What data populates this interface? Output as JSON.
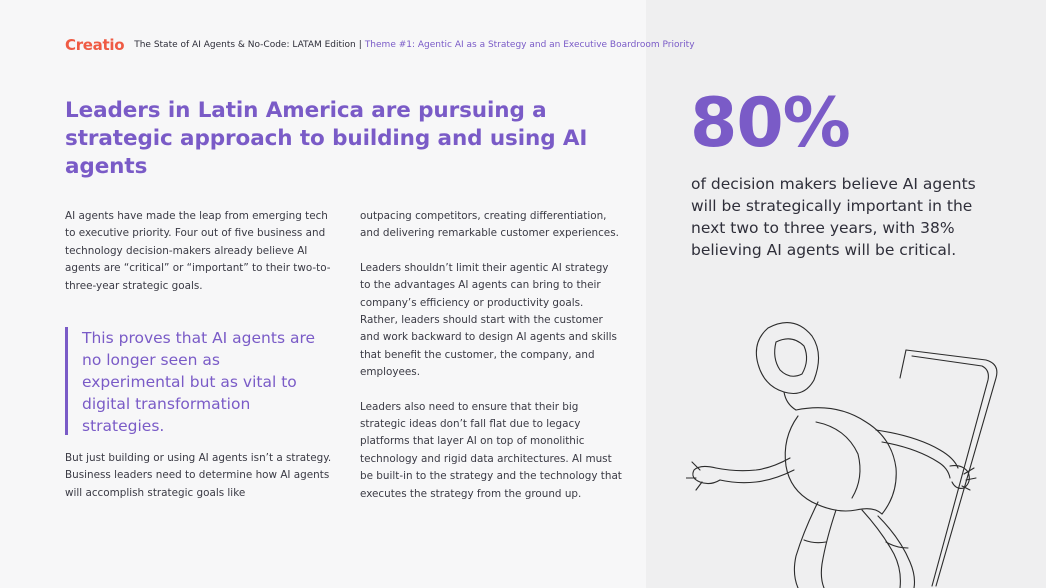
{
  "brand": {
    "logo_text": "Creatio",
    "logo_color": "#ef5b44",
    "accent_color": "#7a5bc7"
  },
  "header": {
    "title": "The State of AI Agents & No-Code: LATAM Edition",
    "separator": "|",
    "theme": "Theme #1: Agentic AI as a Strategy and an Executive Boardroom Priority"
  },
  "headline": "Leaders in Latin America are pursuing a strategic approach to building and using AI agents",
  "column1": {
    "paragraph_1": "AI agents have made the leap from emerging tech to executive priority. Four out of five business and technology decision-makers already believe AI agents are “critical” or “important” to their two-to-three-year strategic goals.",
    "pull_quote": "This proves that AI agents are no longer seen as experimental but as vital to digital transformation strategies.",
    "paragraph_2": "But just building or using AI agents isn’t a strategy. Business leaders need to determine how AI agents will accomplish strategic goals like"
  },
  "column2": {
    "paragraph_1": "outpacing competitors, creating differentiation, and delivering remarkable customer experiences.",
    "paragraph_2": "Leaders shouldn’t limit their agentic AI strategy to the advantages AI agents can bring to their company’s efficiency or productivity goals. Rather, leaders should start with the customer and work backward to design AI agents and skills that benefit the customer, the company, and employees.",
    "paragraph_3": "Leaders also need to ensure that their big strategic ideas don’t fall flat due to legacy platforms that layer AI on top of monolithic technology and rigid data architectures. AI must be built-in to the strategy and the technology that executes the strategy from the ground up."
  },
  "stat": {
    "value": "80%",
    "description": "of decision makers believe AI agents will be strategically important in the next two to three years, with 38% believing AI agents will be critical."
  },
  "illustration": {
    "icon": "robot-emerging-from-phone-line-art"
  }
}
